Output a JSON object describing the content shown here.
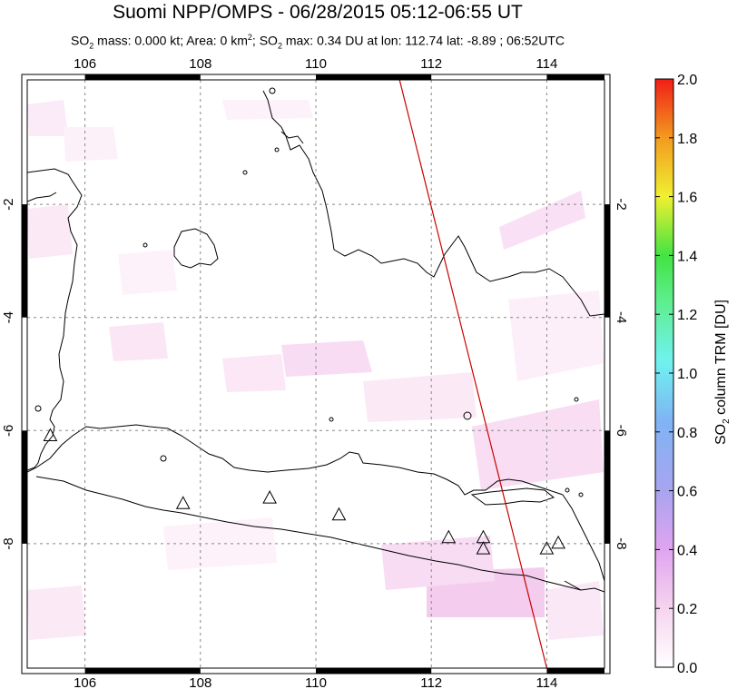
{
  "header": {
    "title": "Suomi NPP/OMPS - 06/28/2015 05:12-06:55 UT",
    "subtitle_parts": {
      "a": "SO",
      "a_sub": "2",
      "b": " mass: 0.000 kt; Area: 0 km",
      "b_sup": "2",
      "c": "; SO",
      "c_sub": "2",
      "d": " max: 0.34 DU at lon: 112.74 lat: -8.89 ; 06:52UTC"
    }
  },
  "map": {
    "lon_labels": [
      "106",
      "108",
      "110",
      "112",
      "114"
    ],
    "lat_labels": [
      "-2",
      "-4",
      "-6",
      "-8"
    ],
    "lon_ticks": [
      106,
      108,
      110,
      112,
      114
    ],
    "lat_ticks": [
      -2,
      -4,
      -6,
      -8
    ],
    "lon_range": [
      105,
      115
    ],
    "lat_range": [
      -10.2,
      0.2
    ],
    "volcano_markers": [
      {
        "lon": 105.4,
        "lat": -6.1
      },
      {
        "lon": 107.7,
        "lat": -7.3
      },
      {
        "lon": 109.2,
        "lat": -7.2
      },
      {
        "lon": 110.4,
        "lat": -7.5
      },
      {
        "lon": 112.3,
        "lat": -7.9
      },
      {
        "lon": 112.9,
        "lat": -7.9
      },
      {
        "lon": 112.9,
        "lat": -8.1
      },
      {
        "lon": 114.0,
        "lat": -8.1
      },
      {
        "lon": 114.2,
        "lat": -8.0
      }
    ],
    "orbit_track": {
      "start": {
        "lon": 111.45,
        "lat": 0.2
      },
      "end": {
        "lon": 114.0,
        "lat": -10.2
      },
      "color": "#cc0000"
    }
  },
  "colorbar": {
    "label_main": "SO",
    "label_sub": "2",
    "label_rest": " column TRM [DU]",
    "tick_labels": [
      "2.0",
      "1.8",
      "1.6",
      "1.4",
      "1.2",
      "1.0",
      "0.8",
      "0.6",
      "0.4",
      "0.2",
      "0.0"
    ],
    "range": [
      0.0,
      2.0
    ]
  }
}
